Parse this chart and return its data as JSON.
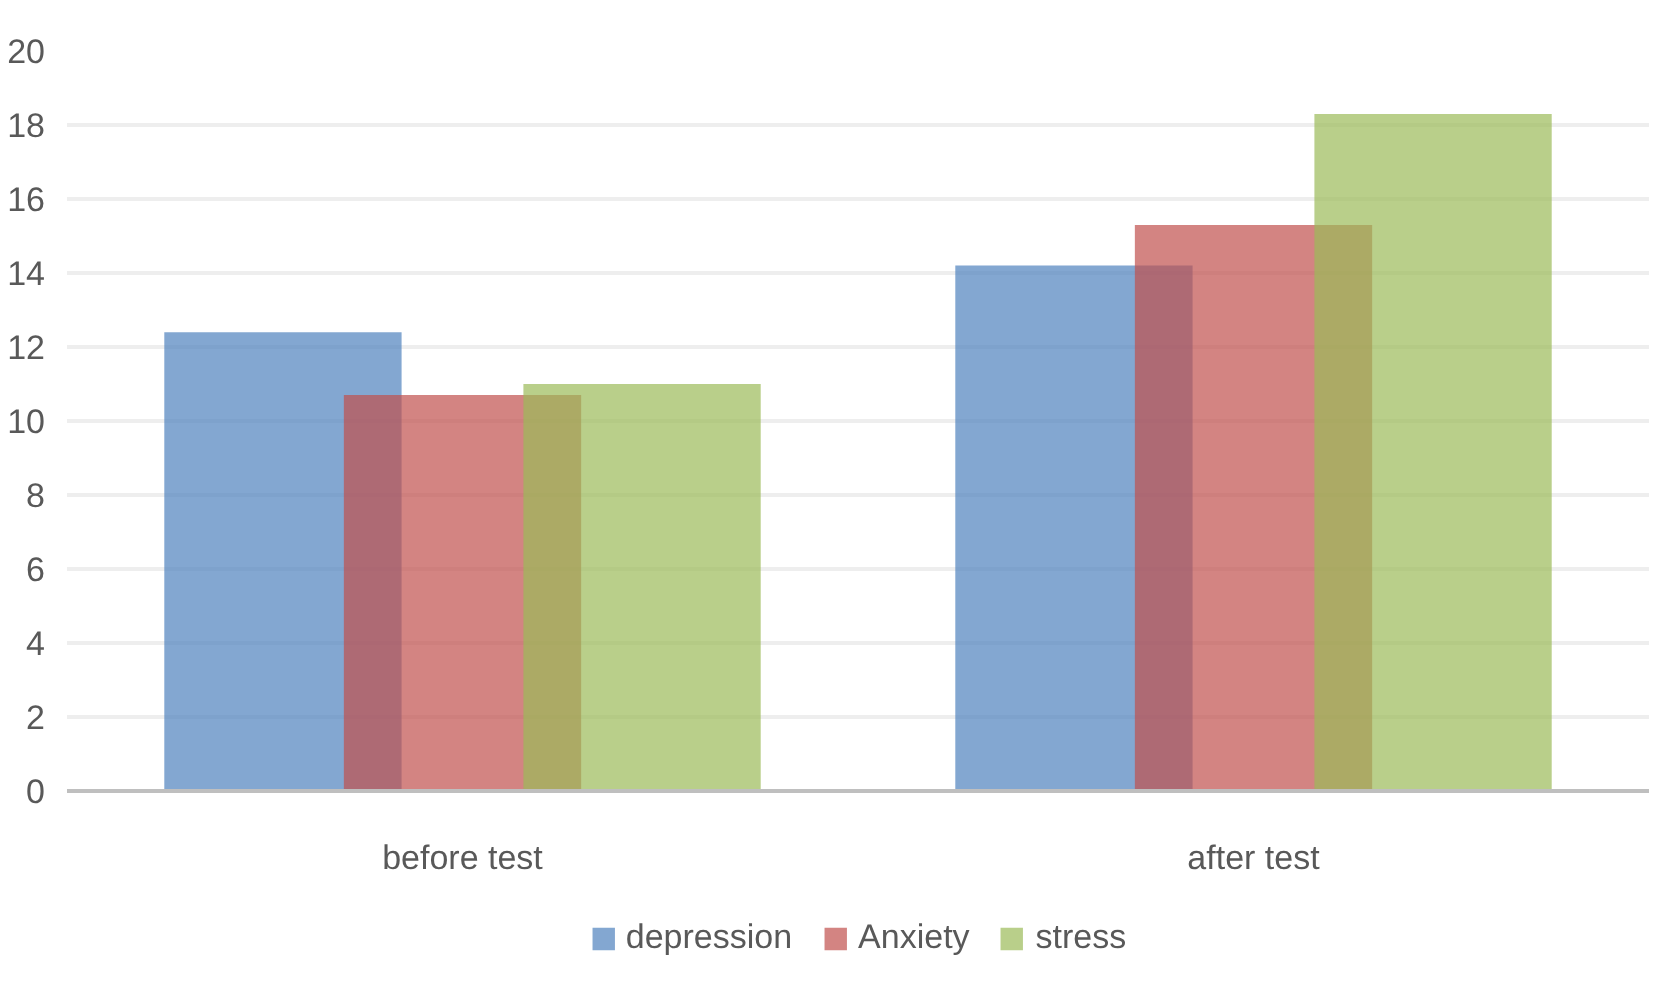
{
  "chart_data": {
    "type": "bar",
    "categories": [
      "before test",
      "after test"
    ],
    "series": [
      {
        "name": "depression",
        "color": "#4f81bd",
        "values": [
          12.4,
          14.2
        ]
      },
      {
        "name": "Anxiety",
        "color": "#c0504d",
        "values": [
          10.7,
          15.3
        ]
      },
      {
        "name": "stress",
        "color": "#9bbb59",
        "values": [
          11.0,
          18.3
        ]
      }
    ],
    "ylim": [
      0,
      20
    ],
    "yticks": [
      0,
      2,
      4,
      6,
      8,
      10,
      12,
      14,
      16,
      18,
      20
    ],
    "grid": "y",
    "legend": "bottom"
  }
}
